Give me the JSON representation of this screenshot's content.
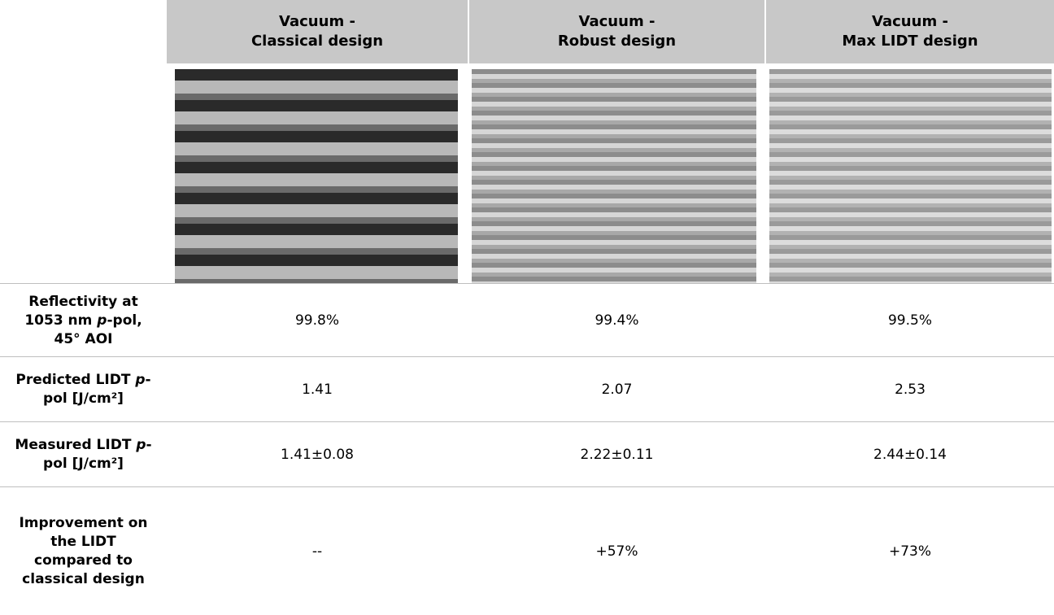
{
  "table": {
    "columns": [
      {
        "lines": [
          "Vacuum -",
          "Classical design"
        ]
      },
      {
        "lines": [
          "Vacuum -",
          "Robust design"
        ]
      },
      {
        "lines": [
          "Vacuum -",
          "Max LIDT design"
        ]
      }
    ],
    "rows": [
      {
        "label": [
          "Reflectivity at 1053 nm ",
          "p",
          "-pol, 45° AOI"
        ],
        "cells": [
          "99.8%",
          "99.4%",
          "99.5%"
        ]
      },
      {
        "label": [
          "Predicted LIDT ",
          "p",
          "-pol [J/cm²]"
        ],
        "cells": [
          "1.41",
          "2.07",
          "2.53"
        ]
      },
      {
        "label": [
          "Measured LIDT ",
          "p",
          "-pol [J/cm²]"
        ],
        "cells": [
          "1.41±0.08",
          "2.22±0.11",
          "2.44±0.14"
        ]
      },
      {
        "label": [
          "Improvement on the LIDT compared to classical design"
        ],
        "cells": [
          "--",
          "+57%",
          "+73%"
        ]
      }
    ]
  }
}
